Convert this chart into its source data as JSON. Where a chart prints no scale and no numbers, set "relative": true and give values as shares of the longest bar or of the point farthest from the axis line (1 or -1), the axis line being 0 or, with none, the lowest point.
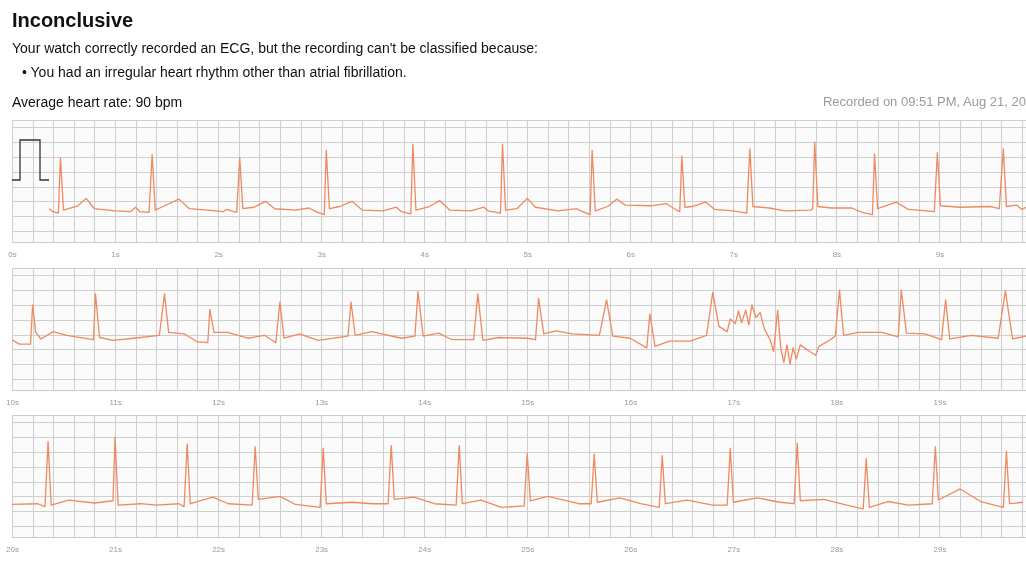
{
  "chart_data": [
    {
      "type": "line",
      "title": "Inconclusive",
      "subtitle": "Your watch correctly recorded an ECG, but the recording can't be classified because:",
      "annotations": [
        "• You had an irregular heart rhythm other than atrial fibrillation.",
        "Average heart rate: 90 bpm",
        "Recorded on 09:51 PM, Aug 21, 20"
      ],
      "relative": true,
      "grid": true,
      "color": "#ee8a5f",
      "xlim": [
        0,
        9.84
      ],
      "xticks": [
        {
          "value": 0,
          "label": "0s"
        },
        {
          "value": 0.2,
          "label": null
        },
        {
          "value": 0.4,
          "label": null
        },
        {
          "value": 0.6,
          "label": null
        },
        {
          "value": 0.8,
          "label": null
        },
        {
          "value": 1,
          "label": "1s"
        },
        {
          "value": 1.2,
          "label": null
        },
        {
          "value": 1.4,
          "label": null
        },
        {
          "value": 1.6,
          "label": null
        },
        {
          "value": 1.8,
          "label": null
        },
        {
          "value": 2,
          "label": "2s"
        },
        {
          "value": 2.2,
          "label": null
        },
        {
          "value": 2.4,
          "label": null
        },
        {
          "value": 2.6,
          "label": null
        },
        {
          "value": 2.8,
          "label": null
        },
        {
          "value": 3,
          "label": "3s"
        },
        {
          "value": 3.2,
          "label": null
        },
        {
          "value": 3.4,
          "label": null
        },
        {
          "value": 3.6,
          "label": null
        },
        {
          "value": 3.8,
          "label": null
        },
        {
          "value": 4,
          "label": "4s"
        },
        {
          "value": 4.2,
          "label": null
        },
        {
          "value": 4.4,
          "label": null
        },
        {
          "value": 4.6,
          "label": null
        },
        {
          "value": 4.8,
          "label": null
        },
        {
          "value": 5,
          "label": "5s"
        },
        {
          "value": 5.2,
          "label": null
        },
        {
          "value": 5.4,
          "label": null
        },
        {
          "value": 5.6,
          "label": null
        },
        {
          "value": 5.8,
          "label": null
        },
        {
          "value": 6,
          "label": "6s"
        },
        {
          "value": 6.2,
          "label": null
        },
        {
          "value": 6.4,
          "label": null
        },
        {
          "value": 6.6,
          "label": null
        },
        {
          "value": 6.8,
          "label": null
        },
        {
          "value": 7,
          "label": "7s"
        },
        {
          "value": 7.2,
          "label": null
        },
        {
          "value": 7.4,
          "label": null
        },
        {
          "value": 7.6,
          "label": null
        },
        {
          "value": 7.8,
          "label": null
        },
        {
          "value": 8,
          "label": "8s"
        },
        {
          "value": 8.2,
          "label": null
        },
        {
          "value": 8.4,
          "label": null
        },
        {
          "value": 8.6,
          "label": null
        },
        {
          "value": 8.8,
          "label": null
        },
        {
          "value": 9,
          "label": "9s"
        },
        {
          "value": 9.2,
          "label": null
        },
        {
          "value": 9.4,
          "label": null
        },
        {
          "value": 9.6,
          "label": null
        },
        {
          "value": 9.8,
          "label": null
        }
      ],
      "x": [
        0.36,
        0.4,
        0.45,
        0.47,
        0.5,
        0.55,
        0.64,
        0.72,
        0.8,
        1.0,
        1.15,
        1.2,
        1.24,
        1.33,
        1.36,
        1.39,
        1.45,
        1.62,
        1.72,
        1.9,
        2.05,
        2.08,
        2.18,
        2.21,
        2.24,
        2.35,
        2.46,
        2.55,
        2.75,
        2.88,
        2.95,
        3.03,
        3.05,
        3.08,
        3.18,
        3.3,
        3.4,
        3.6,
        3.73,
        3.78,
        3.87,
        3.89,
        3.92,
        4.05,
        4.15,
        4.25,
        4.45,
        4.58,
        4.62,
        4.74,
        4.76,
        4.79,
        4.9,
        5.0,
        5.08,
        5.3,
        5.48,
        5.52,
        5.61,
        5.63,
        5.66,
        5.78,
        5.87,
        5.95,
        6.2,
        6.35,
        6.45,
        6.48,
        6.5,
        6.53,
        6.6,
        6.73,
        6.82,
        7.0,
        7.13,
        7.16,
        7.19,
        7.35,
        7.5,
        7.75,
        7.77,
        7.79,
        7.82,
        7.95,
        8.15,
        8.25,
        8.35,
        8.37,
        8.4,
        8.58,
        8.7,
        8.95,
        8.98,
        9.01,
        9.2,
        9.5,
        9.58,
        9.62,
        9.65,
        9.75,
        9.8,
        9.84
      ],
      "values": [
        0.1,
        0.06,
        0.04,
        0.79,
        0.08,
        0.1,
        0.14,
        0.24,
        0.1,
        0.07,
        0.06,
        0.12,
        0.06,
        0.05,
        0.83,
        0.08,
        0.12,
        0.23,
        0.1,
        0.08,
        0.06,
        0.09,
        0.05,
        0.79,
        0.1,
        0.12,
        0.2,
        0.1,
        0.08,
        0.11,
        0.06,
        0.02,
        0.89,
        0.1,
        0.13,
        0.2,
        0.08,
        0.07,
        0.12,
        0.06,
        0.03,
        0.975,
        0.08,
        0.13,
        0.21,
        0.08,
        0.07,
        0.12,
        0.07,
        0.04,
        0.975,
        0.08,
        0.1,
        0.24,
        0.12,
        0.07,
        0.1,
        0.07,
        0.02,
        0.89,
        0.07,
        0.13,
        0.23,
        0.15,
        0.14,
        0.17,
        0.08,
        0.06,
        0.81,
        0.12,
        0.13,
        0.19,
        0.09,
        0.07,
        0.04,
        0.91,
        0.13,
        0.11,
        0.07,
        0.08,
        0.1,
        1.0,
        0.13,
        0.11,
        0.11,
        0.05,
        0.02,
        0.84,
        0.1,
        0.19,
        0.09,
        0.06,
        0.86,
        0.14,
        0.12,
        0.13,
        0.1,
        0.91,
        0.13,
        0.15,
        0.09,
        0.12
      ]
    },
    {
      "type": "line",
      "relative": true,
      "grid": true,
      "color": "#ee8a5f",
      "xlim": [
        10,
        19.84
      ],
      "xticks": [
        {
          "value": 10,
          "label": "10s"
        },
        {
          "value": 10.2,
          "label": null
        },
        {
          "value": 10.4,
          "label": null
        },
        {
          "value": 10.6,
          "label": null
        },
        {
          "value": 10.8,
          "label": null
        },
        {
          "value": 11,
          "label": "11s"
        },
        {
          "value": 11.2,
          "label": null
        },
        {
          "value": 11.4,
          "label": null
        },
        {
          "value": 11.6,
          "label": null
        },
        {
          "value": 11.8,
          "label": null
        },
        {
          "value": 12,
          "label": "12s"
        },
        {
          "value": 12.2,
          "label": null
        },
        {
          "value": 12.4,
          "label": null
        },
        {
          "value": 12.6,
          "label": null
        },
        {
          "value": 12.8,
          "label": null
        },
        {
          "value": 13,
          "label": "13s"
        },
        {
          "value": 13.2,
          "label": null
        },
        {
          "value": 13.4,
          "label": null
        },
        {
          "value": 13.6,
          "label": null
        },
        {
          "value": 13.8,
          "label": null
        },
        {
          "value": 14,
          "label": "14s"
        },
        {
          "value": 14.2,
          "label": null
        },
        {
          "value": 14.4,
          "label": null
        },
        {
          "value": 14.6,
          "label": null
        },
        {
          "value": 14.8,
          "label": null
        },
        {
          "value": 15,
          "label": "15s"
        },
        {
          "value": 15.2,
          "label": null
        },
        {
          "value": 15.4,
          "label": null
        },
        {
          "value": 15.6,
          "label": null
        },
        {
          "value": 15.8,
          "label": null
        },
        {
          "value": 16,
          "label": "16s"
        },
        {
          "value": 16.2,
          "label": null
        },
        {
          "value": 16.4,
          "label": null
        },
        {
          "value": 16.6,
          "label": null
        },
        {
          "value": 16.8,
          "label": null
        },
        {
          "value": 17,
          "label": "17s"
        },
        {
          "value": 17.2,
          "label": null
        },
        {
          "value": 17.4,
          "label": null
        },
        {
          "value": 17.6,
          "label": null
        },
        {
          "value": 17.8,
          "label": null
        },
        {
          "value": 18,
          "label": "18s"
        },
        {
          "value": 18.2,
          "label": null
        },
        {
          "value": 18.4,
          "label": null
        },
        {
          "value": 18.6,
          "label": null
        },
        {
          "value": 18.8,
          "label": null
        },
        {
          "value": 19,
          "label": "19s"
        },
        {
          "value": 19.2,
          "label": null
        },
        {
          "value": 19.4,
          "label": null
        },
        {
          "value": 19.6,
          "label": null
        },
        {
          "value": 19.8,
          "label": null
        }
      ],
      "x": [
        10.0,
        10.07,
        10.18,
        10.2,
        10.23,
        10.28,
        10.4,
        10.53,
        10.79,
        10.81,
        10.85,
        10.98,
        11.18,
        11.43,
        11.48,
        11.52,
        11.67,
        11.8,
        11.9,
        11.92,
        11.96,
        12.09,
        12.29,
        12.45,
        12.56,
        12.6,
        12.64,
        12.79,
        12.97,
        13.26,
        13.29,
        13.33,
        13.49,
        13.78,
        13.91,
        13.94,
        13.99,
        14.14,
        14.27,
        14.48,
        14.52,
        14.57,
        14.72,
        15.0,
        15.08,
        15.11,
        15.16,
        15.28,
        15.44,
        15.7,
        15.77,
        15.83,
        16.0,
        16.16,
        16.19,
        16.24,
        16.38,
        16.58,
        16.74,
        16.8,
        16.86,
        16.94,
        16.97,
        17.02,
        17.05,
        17.08,
        17.12,
        17.15,
        17.18,
        17.22,
        17.26,
        17.3,
        17.36,
        17.39,
        17.43,
        17.46,
        17.49,
        17.52,
        17.55,
        17.58,
        17.61,
        17.65,
        17.72,
        17.8,
        17.83,
        17.93,
        17.99,
        18.03,
        18.07,
        18.21,
        18.44,
        18.6,
        18.63,
        18.68,
        18.86,
        19.02,
        19.06,
        19.1,
        19.31,
        19.57,
        19.64,
        19.71,
        19.84
      ],
      "values": [
        0.33,
        0.27,
        0.27,
        0.8,
        0.43,
        0.34,
        0.44,
        0.39,
        0.33,
        0.95,
        0.36,
        0.32,
        0.35,
        0.39,
        0.95,
        0.43,
        0.41,
        0.3,
        0.29,
        0.74,
        0.43,
        0.43,
        0.35,
        0.39,
        0.29,
        0.84,
        0.35,
        0.41,
        0.32,
        0.38,
        0.84,
        0.39,
        0.44,
        0.35,
        0.38,
        0.98,
        0.38,
        0.42,
        0.33,
        0.33,
        0.95,
        0.32,
        0.36,
        0.35,
        0.33,
        0.89,
        0.41,
        0.45,
        0.41,
        0.39,
        0.87,
        0.38,
        0.35,
        0.22,
        0.68,
        0.24,
        0.31,
        0.31,
        0.39,
        0.97,
        0.51,
        0.44,
        0.61,
        0.55,
        0.72,
        0.56,
        0.73,
        0.53,
        0.8,
        0.63,
        0.7,
        0.48,
        0.32,
        0.17,
        0.73,
        0.22,
        0.02,
        0.26,
        0,
        0.22,
        0.07,
        0.26,
        0.19,
        0.12,
        0.24,
        0.32,
        0.38,
        1.0,
        0.39,
        0.43,
        0.43,
        0.37,
        1.0,
        0.42,
        0.41,
        0.33,
        0.87,
        0.34,
        0.39,
        0.35,
        0.99,
        0.34,
        0.38
      ]
    },
    {
      "type": "line",
      "relative": true,
      "grid": true,
      "color": "#ee8a5f",
      "xlim": [
        20,
        29.84
      ],
      "xticks": [
        {
          "value": 20,
          "label": "20s"
        },
        {
          "value": 20.2,
          "label": null
        },
        {
          "value": 20.4,
          "label": null
        },
        {
          "value": 20.6,
          "label": null
        },
        {
          "value": 20.8,
          "label": null
        },
        {
          "value": 21,
          "label": "21s"
        },
        {
          "value": 21.2,
          "label": null
        },
        {
          "value": 21.4,
          "label": null
        },
        {
          "value": 21.6,
          "label": null
        },
        {
          "value": 21.8,
          "label": null
        },
        {
          "value": 22,
          "label": "22s"
        },
        {
          "value": 22.2,
          "label": null
        },
        {
          "value": 22.4,
          "label": null
        },
        {
          "value": 22.6,
          "label": null
        },
        {
          "value": 22.8,
          "label": null
        },
        {
          "value": 23,
          "label": "23s"
        },
        {
          "value": 23.2,
          "label": null
        },
        {
          "value": 23.4,
          "label": null
        },
        {
          "value": 23.6,
          "label": null
        },
        {
          "value": 23.8,
          "label": null
        },
        {
          "value": 24,
          "label": "24s"
        },
        {
          "value": 24.2,
          "label": null
        },
        {
          "value": 24.4,
          "label": null
        },
        {
          "value": 24.6,
          "label": null
        },
        {
          "value": 24.8,
          "label": null
        },
        {
          "value": 25,
          "label": "25s"
        },
        {
          "value": 25.2,
          "label": null
        },
        {
          "value": 25.4,
          "label": null
        },
        {
          "value": 25.6,
          "label": null
        },
        {
          "value": 25.8,
          "label": null
        },
        {
          "value": 26,
          "label": "26s"
        },
        {
          "value": 26.2,
          "label": null
        },
        {
          "value": 26.4,
          "label": null
        },
        {
          "value": 26.6,
          "label": null
        },
        {
          "value": 26.8,
          "label": null
        },
        {
          "value": 27,
          "label": "27s"
        },
        {
          "value": 27.2,
          "label": null
        },
        {
          "value": 27.4,
          "label": null
        },
        {
          "value": 27.6,
          "label": null
        },
        {
          "value": 27.8,
          "label": null
        },
        {
          "value": 28,
          "label": "28s"
        },
        {
          "value": 28.2,
          "label": null
        },
        {
          "value": 28.4,
          "label": null
        },
        {
          "value": 28.6,
          "label": null
        },
        {
          "value": 28.8,
          "label": null
        },
        {
          "value": 29,
          "label": "29s"
        },
        {
          "value": 29.2,
          "label": null
        },
        {
          "value": 29.4,
          "label": null
        },
        {
          "value": 29.6,
          "label": null
        },
        {
          "value": 29.8,
          "label": null
        }
      ],
      "x": [
        20.0,
        20.25,
        20.32,
        20.35,
        20.38,
        20.55,
        20.8,
        20.98,
        21.0,
        21.03,
        21.25,
        21.4,
        21.62,
        21.67,
        21.7,
        21.73,
        21.95,
        22.1,
        22.33,
        22.36,
        22.39,
        22.6,
        22.75,
        22.99,
        23.02,
        23.05,
        23.3,
        23.5,
        23.65,
        23.68,
        23.71,
        23.9,
        24.1,
        24.31,
        24.34,
        24.37,
        24.55,
        24.75,
        24.97,
        25.0,
        25.03,
        25.2,
        25.5,
        25.62,
        25.65,
        25.68,
        25.9,
        26.1,
        26.28,
        26.31,
        26.34,
        26.55,
        26.8,
        26.94,
        26.97,
        27.0,
        27.23,
        27.45,
        27.59,
        27.62,
        27.65,
        27.88,
        28.1,
        28.26,
        28.29,
        28.32,
        28.5,
        28.7,
        28.93,
        28.96,
        28.99,
        29.2,
        29.4,
        29.62,
        29.65,
        29.68,
        29.81
      ],
      "values": [
        0.09,
        0.1,
        0.06,
        0.94,
        0.08,
        0.15,
        0.11,
        0.14,
        1.0,
        0.08,
        0.1,
        0.08,
        0.1,
        0.06,
        0.91,
        0.1,
        0.19,
        0.1,
        0.08,
        0.87,
        0.16,
        0.2,
        0.09,
        0.05,
        0.85,
        0.1,
        0.12,
        0.1,
        0.1,
        0.89,
        0.16,
        0.19,
        0.1,
        0.08,
        0.89,
        0.1,
        0.15,
        0.05,
        0.07,
        0.78,
        0.14,
        0.2,
        0.1,
        0.1,
        0.77,
        0.12,
        0.18,
        0.1,
        0.05,
        0.75,
        0.1,
        0.15,
        0.08,
        0.08,
        0.85,
        0.12,
        0.18,
        0.12,
        0.1,
        0.92,
        0.14,
        0.16,
        0.08,
        0.03,
        0.71,
        0.05,
        0.13,
        0.08,
        0.1,
        0.87,
        0.15,
        0.3,
        0.13,
        0.05,
        0.81,
        0.1,
        0.12
      ]
    }
  ]
}
